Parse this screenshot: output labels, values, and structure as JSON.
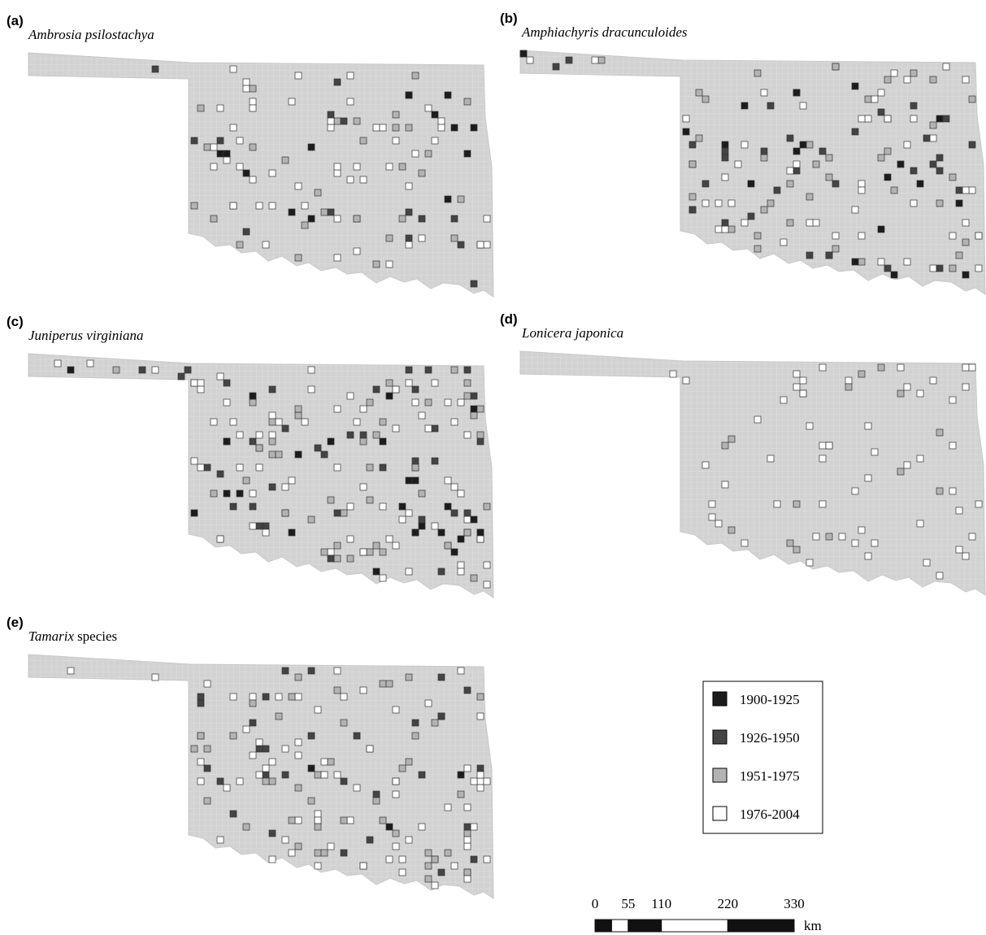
{
  "panels": [
    {
      "label": "(a)",
      "title": "Ambrosia psilostachya"
    },
    {
      "label": "(b)",
      "title": "Amphiachyris dracunculoides"
    },
    {
      "label": "(c)",
      "title": "Juniperus virginiana"
    },
    {
      "label": "(d)",
      "title": "Lonicera japonica"
    },
    {
      "label": "(e)",
      "genus": "Tamarix",
      "rest": "species"
    }
  ],
  "legend": [
    {
      "name": "1900-1925",
      "color": "#1c1c1c"
    },
    {
      "name": "1926-1950",
      "color": "#444444"
    },
    {
      "name": "1951-1975",
      "color": "#b3b3b3"
    },
    {
      "name": "1976-2004",
      "color": "#ffffff"
    }
  ],
  "scale_bar": {
    "ticks": [
      0,
      55,
      110,
      220,
      330
    ],
    "unit": "km"
  }
}
